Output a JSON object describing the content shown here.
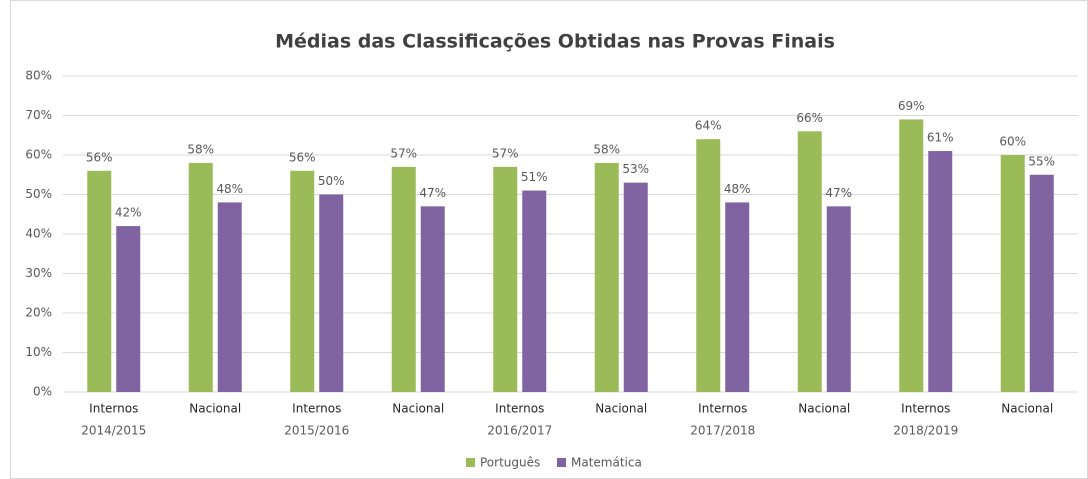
{
  "chart_data": {
    "type": "bar",
    "title": "Médias das Classificações Obtidas nas Provas Finais",
    "categories": [
      "Internos",
      "Nacional",
      "Internos",
      "Nacional",
      "Internos",
      "Nacional",
      "Internos",
      "Nacional",
      "Internos",
      "Nacional"
    ],
    "category_groups": [
      "2014/2015",
      "2015/2016",
      "2016/2017",
      "2017/2018",
      "2018/2019"
    ],
    "series": [
      {
        "name": "Português",
        "color": "#9bbb59",
        "values": [
          56,
          58,
          56,
          57,
          57,
          58,
          64,
          66,
          69,
          60
        ],
        "value_labels": [
          "56%",
          "58%",
          "56%",
          "57%",
          "57%",
          "58%",
          "64%",
          "66%",
          "69%",
          "60%"
        ]
      },
      {
        "name": "Matemática",
        "color": "#8064a2",
        "values": [
          42,
          48,
          50,
          47,
          51,
          53,
          48,
          47,
          61,
          55
        ],
        "value_labels": [
          "42%",
          "48%",
          "50%",
          "47%",
          "51%",
          "53%",
          "48%",
          "47%",
          "61%",
          "55%"
        ]
      }
    ],
    "ylim": [
      0,
      80
    ],
    "yticks": [
      {
        "value": 0,
        "label": "0%"
      },
      {
        "value": 10,
        "label": "10%"
      },
      {
        "value": 20,
        "label": "20%"
      },
      {
        "value": 30,
        "label": "30%"
      },
      {
        "value": 40,
        "label": "40%"
      },
      {
        "value": 50,
        "label": "50%"
      },
      {
        "value": 60,
        "label": "60%"
      },
      {
        "value": 70,
        "label": "70%"
      },
      {
        "value": 80,
        "label": "80%"
      }
    ],
    "grid": true,
    "legend": "bottom"
  }
}
